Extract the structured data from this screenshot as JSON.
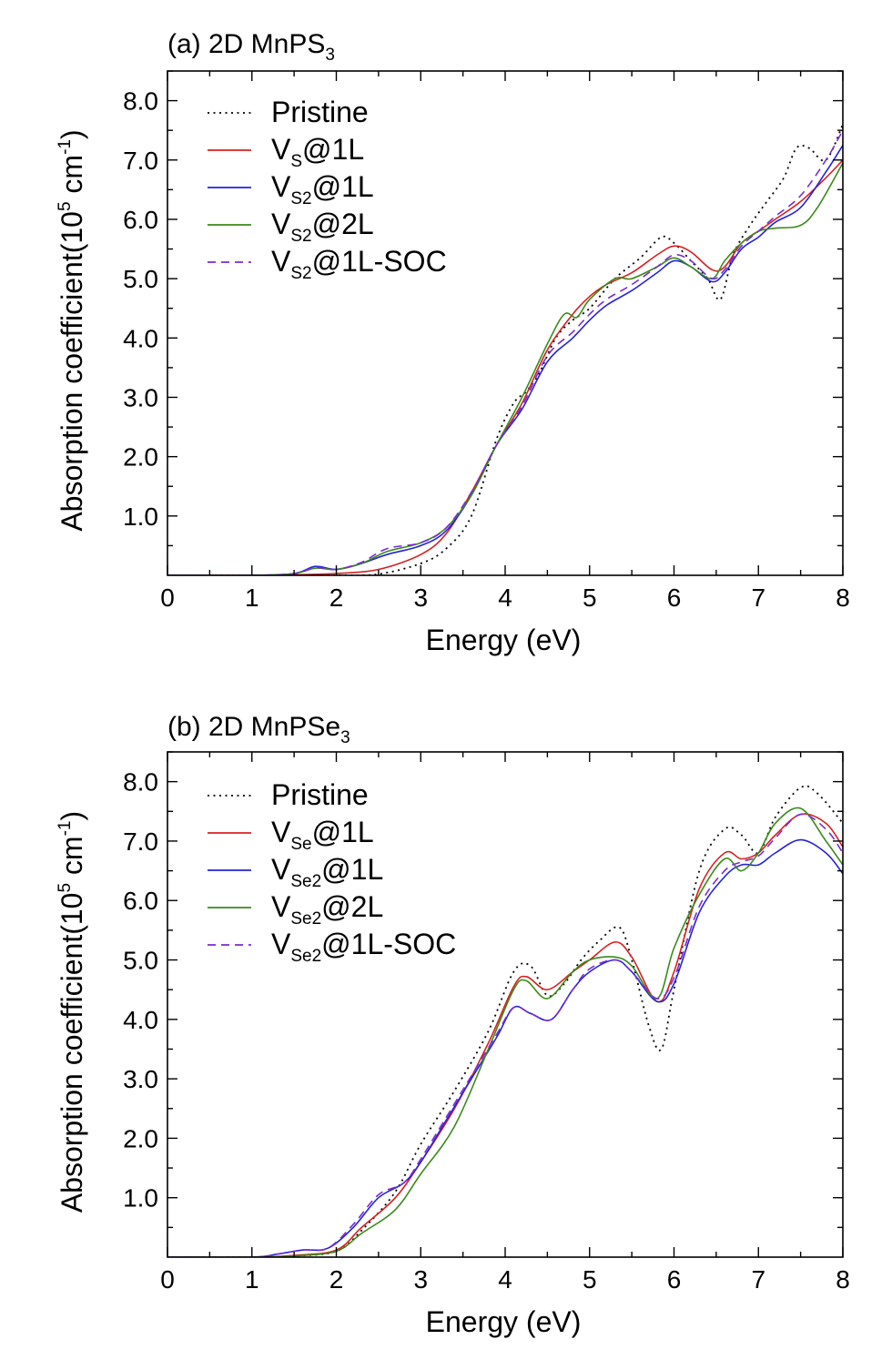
{
  "chart_data": [
    {
      "type": "line",
      "title": "(a) 2D MnPS",
      "title_sub": "3",
      "xlabel": "Energy (eV)",
      "ylabel": "Absorption coefficient(10",
      "ylabel_sup1": "5",
      "ylabel_mid": " cm",
      "ylabel_sup2": "-1",
      "ylabel_end": ")",
      "xlim": [
        0,
        8
      ],
      "ylim": [
        0,
        8.5
      ],
      "xticks": [
        "0",
        "1",
        "2",
        "3",
        "4",
        "5",
        "6",
        "7",
        "8"
      ],
      "yticks": [
        "1.0",
        "2.0",
        "3.0",
        "4.0",
        "5.0",
        "6.0",
        "7.0",
        "8.0"
      ],
      "legend_position": "top-left",
      "series": [
        {
          "name": "Pristine",
          "sub": "",
          "rest": "",
          "color": "#000000",
          "dash": "dotted",
          "x": [
            0,
            1,
            1.5,
            2,
            2.5,
            3,
            3.3,
            3.6,
            3.9,
            4.1,
            4.25,
            4.4,
            4.6,
            4.8,
            5,
            5.3,
            5.6,
            5.85,
            6,
            6.2,
            6.4,
            6.55,
            6.7,
            6.9,
            7.1,
            7.3,
            7.45,
            7.6,
            7.8,
            8
          ],
          "y": [
            0,
            0,
            0,
            0,
            0.02,
            0.2,
            0.45,
            1.0,
            2.3,
            2.9,
            3.1,
            3.4,
            4.0,
            4.3,
            4.5,
            5.0,
            5.35,
            5.7,
            5.6,
            5.3,
            5.0,
            4.65,
            5.4,
            5.9,
            6.3,
            6.7,
            7.2,
            7.2,
            7.0,
            7.6
          ]
        },
        {
          "name": "V",
          "sub": "S",
          "rest": "@1L",
          "color": "#d62020",
          "dash": "solid",
          "x": [
            0,
            1,
            1.5,
            2,
            2.5,
            3,
            3.3,
            3.6,
            3.9,
            4.2,
            4.5,
            4.8,
            5,
            5.2,
            5.5,
            5.8,
            6,
            6.2,
            6.45,
            6.6,
            6.8,
            7,
            7.2,
            7.5,
            7.8,
            8
          ],
          "y": [
            0,
            0,
            0.01,
            0.03,
            0.1,
            0.35,
            0.7,
            1.4,
            2.2,
            2.9,
            3.8,
            4.4,
            4.7,
            4.9,
            5.1,
            5.4,
            5.55,
            5.45,
            5.15,
            5.2,
            5.6,
            5.8,
            6.0,
            6.3,
            6.7,
            7.0
          ]
        },
        {
          "name": "V",
          "sub": "S2",
          "rest": "@1L",
          "color": "#2323d8",
          "dash": "solid",
          "x": [
            0,
            1,
            1.5,
            1.75,
            2,
            2.3,
            2.6,
            3,
            3.3,
            3.6,
            3.9,
            4.2,
            4.5,
            4.8,
            5,
            5.2,
            5.5,
            5.8,
            6,
            6.2,
            6.45,
            6.6,
            6.8,
            7,
            7.2,
            7.5,
            7.8,
            8
          ],
          "y": [
            0,
            0,
            0.03,
            0.15,
            0.1,
            0.2,
            0.35,
            0.5,
            0.75,
            1.35,
            2.2,
            2.8,
            3.6,
            4.0,
            4.3,
            4.55,
            4.8,
            5.1,
            5.3,
            5.2,
            4.95,
            5.1,
            5.5,
            5.7,
            5.95,
            6.2,
            6.8,
            7.25
          ]
        },
        {
          "name": "V",
          "sub": "S2",
          "rest": "@2L",
          "color": "#3a8a1a",
          "dash": "solid",
          "x": [
            0,
            1,
            1.5,
            1.75,
            2,
            2.3,
            2.6,
            3,
            3.3,
            3.6,
            3.9,
            4.2,
            4.5,
            4.7,
            4.85,
            5,
            5.3,
            5.5,
            5.8,
            6,
            6.2,
            6.45,
            6.6,
            6.8,
            7,
            7.2,
            7.5,
            7.7,
            8
          ],
          "y": [
            0,
            0,
            0.03,
            0.12,
            0.1,
            0.2,
            0.4,
            0.55,
            0.8,
            1.35,
            2.2,
            3.0,
            3.9,
            4.4,
            4.35,
            4.65,
            5.0,
            5.0,
            5.2,
            5.35,
            5.2,
            5.0,
            5.3,
            5.6,
            5.8,
            5.85,
            5.9,
            6.2,
            6.95
          ]
        },
        {
          "name": "V",
          "sub": "S2",
          "rest": "@1L-SOC",
          "color": "#7a2bd0",
          "dash": "dashed",
          "x": [
            0,
            1,
            1.5,
            1.75,
            2,
            2.3,
            2.6,
            3,
            3.3,
            3.6,
            3.9,
            4.2,
            4.5,
            4.8,
            5,
            5.2,
            5.5,
            5.8,
            6,
            6.2,
            6.45,
            6.6,
            6.8,
            7,
            7.2,
            7.5,
            7.8,
            8
          ],
          "y": [
            0,
            0,
            0.03,
            0.13,
            0.1,
            0.22,
            0.45,
            0.55,
            0.8,
            1.4,
            2.2,
            2.85,
            3.7,
            4.1,
            4.4,
            4.65,
            4.9,
            5.2,
            5.4,
            5.3,
            5.0,
            5.15,
            5.55,
            5.8,
            6.05,
            6.4,
            7.0,
            7.5
          ]
        }
      ]
    },
    {
      "type": "line",
      "title": "(b) 2D MnPSe",
      "title_sub": "3",
      "xlabel": "Energy (eV)",
      "ylabel": "Absorption coefficient(10",
      "ylabel_sup1": "5",
      "ylabel_mid": " cm",
      "ylabel_sup2": "-1",
      "ylabel_end": ")",
      "xlim": [
        0,
        8
      ],
      "ylim": [
        0,
        8.5
      ],
      "xticks": [
        "0",
        "1",
        "2",
        "3",
        "4",
        "5",
        "6",
        "7",
        "8"
      ],
      "yticks": [
        "1.0",
        "2.0",
        "3.0",
        "4.0",
        "5.0",
        "6.0",
        "7.0",
        "8.0"
      ],
      "legend_position": "top-left",
      "series": [
        {
          "name": "Pristine",
          "sub": "",
          "rest": "",
          "color": "#000000",
          "dash": "dotted",
          "x": [
            0,
            1,
            1.5,
            2,
            2.3,
            2.7,
            3,
            3.4,
            3.8,
            4.1,
            4.3,
            4.5,
            4.7,
            4.9,
            5.1,
            5.35,
            5.5,
            5.7,
            5.85,
            6,
            6.3,
            6.6,
            6.8,
            7,
            7.2,
            7.5,
            7.7,
            8
          ],
          "y": [
            0,
            0,
            0.02,
            0.1,
            0.45,
            1.1,
            1.9,
            2.8,
            3.8,
            4.8,
            4.9,
            4.4,
            4.6,
            5.0,
            5.3,
            5.55,
            5.0,
            3.9,
            3.5,
            4.5,
            6.5,
            7.2,
            7.1,
            6.8,
            7.4,
            7.9,
            7.8,
            7.3
          ]
        },
        {
          "name": "V",
          "sub": "Se",
          "rest": "@1L",
          "color": "#d62020",
          "dash": "solid",
          "x": [
            0,
            1,
            1.5,
            2,
            2.3,
            2.7,
            3,
            3.4,
            3.8,
            4.1,
            4.25,
            4.5,
            4.8,
            5,
            5.3,
            5.5,
            5.8,
            6,
            6.3,
            6.6,
            6.8,
            7,
            7.2,
            7.5,
            7.8,
            8
          ],
          "y": [
            0,
            0,
            0.03,
            0.12,
            0.5,
            1.0,
            1.6,
            2.5,
            3.6,
            4.55,
            4.72,
            4.5,
            4.8,
            5.0,
            5.3,
            5.05,
            4.3,
            4.8,
            6.2,
            6.8,
            6.7,
            6.8,
            7.1,
            7.45,
            7.3,
            6.9
          ]
        },
        {
          "name": "V",
          "sub": "Se2",
          "rest": "@1L",
          "color": "#2323d8",
          "dash": "solid",
          "x": [
            0,
            1,
            1.3,
            1.6,
            1.9,
            2.2,
            2.5,
            2.8,
            3,
            3.3,
            3.6,
            3.9,
            4.1,
            4.3,
            4.55,
            4.8,
            5,
            5.3,
            5.5,
            5.8,
            6,
            6.3,
            6.6,
            6.8,
            7,
            7.2,
            7.5,
            7.8,
            8
          ],
          "y": [
            0,
            0,
            0.05,
            0.12,
            0.15,
            0.5,
            1.0,
            1.25,
            1.6,
            2.3,
            3.0,
            3.7,
            4.2,
            4.1,
            4.0,
            4.5,
            4.8,
            5.0,
            4.8,
            4.3,
            4.6,
            5.8,
            6.4,
            6.6,
            6.6,
            6.8,
            7.02,
            6.8,
            6.45
          ]
        },
        {
          "name": "V",
          "sub": "Se2",
          "rest": "@2L",
          "color": "#3a8a1a",
          "dash": "solid",
          "x": [
            0,
            1,
            1.5,
            2,
            2.3,
            2.7,
            3,
            3.4,
            3.8,
            4.1,
            4.25,
            4.5,
            4.8,
            5,
            5.3,
            5.5,
            5.8,
            6,
            6.3,
            6.6,
            6.8,
            7,
            7.2,
            7.5,
            7.8,
            8
          ],
          "y": [
            0,
            0,
            0.02,
            0.1,
            0.4,
            0.8,
            1.4,
            2.2,
            3.5,
            4.5,
            4.65,
            4.35,
            4.8,
            5.0,
            5.05,
            4.9,
            4.35,
            5.2,
            6.1,
            6.7,
            6.5,
            6.8,
            7.3,
            7.55,
            7.0,
            6.6
          ]
        },
        {
          "name": "V",
          "sub": "Se2",
          "rest": "@1L-SOC",
          "color": "#7a2bd0",
          "dash": "dashed",
          "x": [
            0,
            1,
            1.3,
            1.6,
            1.9,
            2.2,
            2.5,
            2.8,
            3,
            3.3,
            3.6,
            3.9,
            4.1,
            4.3,
            4.55,
            4.8,
            5,
            5.3,
            5.5,
            5.8,
            6,
            6.3,
            6.6,
            6.8,
            7,
            7.2,
            7.5,
            7.8,
            8
          ],
          "y": [
            0,
            0,
            0.05,
            0.12,
            0.15,
            0.55,
            1.05,
            1.25,
            1.65,
            2.35,
            3.05,
            3.75,
            4.2,
            4.1,
            4.0,
            4.5,
            4.85,
            5.0,
            4.8,
            4.35,
            4.7,
            5.9,
            6.5,
            6.65,
            6.75,
            7.05,
            7.45,
            7.2,
            6.8
          ]
        }
      ]
    }
  ]
}
